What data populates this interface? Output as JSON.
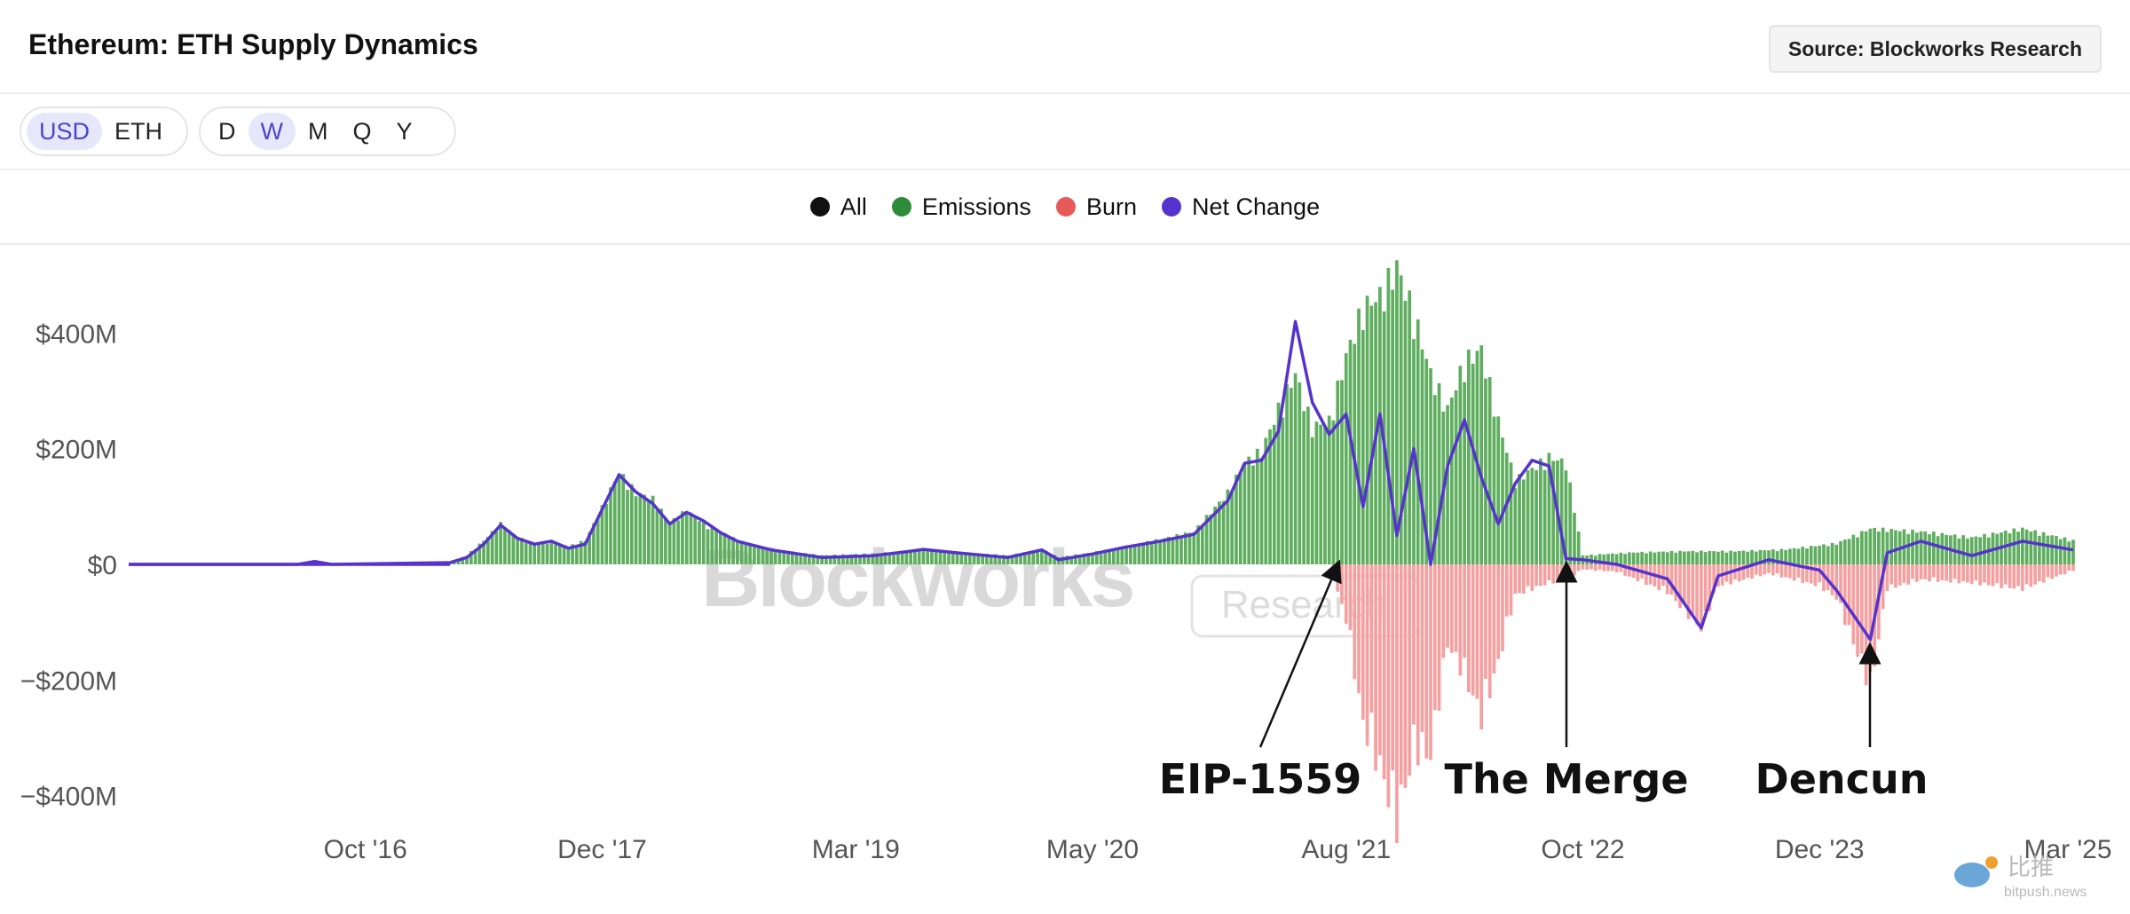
{
  "header": {
    "title": "Ethereum: ETH Supply Dynamics",
    "source_label": "Source: Blockworks Research"
  },
  "controls": {
    "currency": [
      {
        "label": "USD",
        "active": true
      },
      {
        "label": "ETH",
        "active": false
      }
    ],
    "interval": [
      {
        "label": "D",
        "active": false
      },
      {
        "label": "W",
        "active": true
      },
      {
        "label": "M",
        "active": false
      },
      {
        "label": "Q",
        "active": false
      },
      {
        "label": "Y",
        "active": false
      }
    ]
  },
  "legend": [
    {
      "label": "All",
      "color": "#111111"
    },
    {
      "label": "Emissions",
      "color": "#2e8b3a"
    },
    {
      "label": "Burn",
      "color": "#e85a5a"
    },
    {
      "label": "Net Change",
      "color": "#5533cc"
    }
  ],
  "watermark": {
    "brand": "Blockworks",
    "tag": "Research"
  },
  "corner_mark": {
    "name": "比推",
    "site": "bitpush.news"
  },
  "colors": {
    "emissions": "#5fae5f",
    "burn": "#f4a0a0",
    "net": "#5533cc",
    "annotation": "#111111"
  },
  "chart_data": {
    "type": "bar",
    "x_range": [
      "2015-08",
      "2025-03"
    ],
    "x_ticks": [
      "Oct '16",
      "Dec '17",
      "Mar '19",
      "May '20",
      "Aug '21",
      "Oct '22",
      "Dec '23",
      "Mar '25"
    ],
    "x_tick_dates": [
      "2016-10",
      "2017-12",
      "2019-03",
      "2020-05",
      "2021-08",
      "2022-10",
      "2023-12",
      "2025-03"
    ],
    "y_ticks": [
      400,
      200,
      0,
      -200,
      -400
    ],
    "y_tick_labels": [
      "$400M",
      "$200M",
      "$0",
      "−$200M",
      "−$400M"
    ],
    "ylim": [
      -430,
      510
    ],
    "y_unit": "USD millions",
    "series": [
      {
        "name": "Emissions",
        "points": [
          [
            "2015-08",
            0
          ],
          [
            "2016-06",
            1
          ],
          [
            "2017-03",
            3
          ],
          [
            "2017-04",
            15
          ],
          [
            "2017-05",
            40
          ],
          [
            "2017-06",
            68
          ],
          [
            "2017-07",
            45
          ],
          [
            "2017-08",
            35
          ],
          [
            "2017-09",
            38
          ],
          [
            "2017-10",
            30
          ],
          [
            "2017-11",
            40
          ],
          [
            "2017-12",
            95
          ],
          [
            "2018-01",
            155
          ],
          [
            "2018-02",
            120
          ],
          [
            "2018-03",
            110
          ],
          [
            "2018-04",
            70
          ],
          [
            "2018-05",
            90
          ],
          [
            "2018-06",
            70
          ],
          [
            "2018-07",
            55
          ],
          [
            "2018-08",
            40
          ],
          [
            "2018-10",
            25
          ],
          [
            "2019-01",
            15
          ],
          [
            "2019-04",
            18
          ],
          [
            "2019-06",
            22
          ],
          [
            "2019-07",
            25
          ],
          [
            "2019-09",
            20
          ],
          [
            "2019-12",
            15
          ],
          [
            "2020-02",
            25
          ],
          [
            "2020-03",
            12
          ],
          [
            "2020-05",
            20
          ],
          [
            "2020-07",
            30
          ],
          [
            "2020-09",
            42
          ],
          [
            "2020-11",
            55
          ],
          [
            "2021-01",
            120
          ],
          [
            "2021-02",
            170
          ],
          [
            "2021-03",
            190
          ],
          [
            "2021-04",
            260
          ],
          [
            "2021-05",
            320
          ],
          [
            "2021-06",
            230
          ],
          [
            "2021-07",
            240
          ],
          [
            "2021-08",
            350
          ],
          [
            "2021-09",
            430
          ],
          [
            "2021-10",
            450
          ],
          [
            "2021-11",
            500
          ],
          [
            "2021-12",
            420
          ],
          [
            "2022-01",
            320
          ],
          [
            "2022-02",
            260
          ],
          [
            "2022-03",
            340
          ],
          [
            "2022-04",
            360
          ],
          [
            "2022-05",
            240
          ],
          [
            "2022-06",
            140
          ],
          [
            "2022-07",
            160
          ],
          [
            "2022-08",
            180
          ],
          [
            "2022-09",
            170
          ],
          [
            "2022-10",
            15
          ],
          [
            "2023-01",
            20
          ],
          [
            "2023-04",
            22
          ],
          [
            "2023-07",
            22
          ],
          [
            "2023-10",
            25
          ],
          [
            "2024-01",
            35
          ],
          [
            "2024-03",
            60
          ],
          [
            "2024-06",
            55
          ],
          [
            "2024-09",
            45
          ],
          [
            "2024-12",
            60
          ],
          [
            "2025-03",
            40
          ]
        ]
      },
      {
        "name": "Burn",
        "points": [
          [
            "2015-08",
            0
          ],
          [
            "2021-07",
            0
          ],
          [
            "2021-08",
            -90
          ],
          [
            "2021-09",
            -260
          ],
          [
            "2021-10",
            -330
          ],
          [
            "2021-11",
            -420
          ],
          [
            "2021-12",
            -300
          ],
          [
            "2022-01",
            -310
          ],
          [
            "2022-02",
            -130
          ],
          [
            "2022-03",
            -180
          ],
          [
            "2022-04",
            -250
          ],
          [
            "2022-05",
            -160
          ],
          [
            "2022-06",
            -50
          ],
          [
            "2022-07",
            -40
          ],
          [
            "2022-08",
            -30
          ],
          [
            "2022-09",
            -25
          ],
          [
            "2022-10",
            -8
          ],
          [
            "2022-12",
            -12
          ],
          [
            "2023-03",
            -45
          ],
          [
            "2023-05",
            -105
          ],
          [
            "2023-06",
            -35
          ],
          [
            "2023-09",
            -15
          ],
          [
            "2023-12",
            -35
          ],
          [
            "2024-01",
            -55
          ],
          [
            "2024-03",
            -200
          ],
          [
            "2024-04",
            -40
          ],
          [
            "2024-06",
            -25
          ],
          [
            "2024-09",
            -30
          ],
          [
            "2024-12",
            -40
          ],
          [
            "2025-03",
            -10
          ]
        ]
      },
      {
        "name": "Net Change",
        "points": [
          [
            "2015-08",
            0
          ],
          [
            "2016-06",
            0
          ],
          [
            "2016-07",
            5
          ],
          [
            "2016-08",
            0
          ],
          [
            "2017-03",
            3
          ],
          [
            "2017-04",
            12
          ],
          [
            "2017-05",
            35
          ],
          [
            "2017-06",
            68
          ],
          [
            "2017-07",
            45
          ],
          [
            "2017-08",
            35
          ],
          [
            "2017-09",
            40
          ],
          [
            "2017-10",
            28
          ],
          [
            "2017-11",
            35
          ],
          [
            "2017-12",
            95
          ],
          [
            "2018-01",
            155
          ],
          [
            "2018-02",
            125
          ],
          [
            "2018-03",
            105
          ],
          [
            "2018-04",
            70
          ],
          [
            "2018-05",
            90
          ],
          [
            "2018-06",
            75
          ],
          [
            "2018-07",
            55
          ],
          [
            "2018-08",
            40
          ],
          [
            "2018-10",
            25
          ],
          [
            "2019-01",
            12
          ],
          [
            "2019-04",
            15
          ],
          [
            "2019-06",
            22
          ],
          [
            "2019-07",
            26
          ],
          [
            "2019-09",
            20
          ],
          [
            "2019-12",
            12
          ],
          [
            "2020-02",
            25
          ],
          [
            "2020-03",
            8
          ],
          [
            "2020-05",
            18
          ],
          [
            "2020-07",
            30
          ],
          [
            "2020-09",
            40
          ],
          [
            "2020-11",
            52
          ],
          [
            "2021-01",
            110
          ],
          [
            "2021-02",
            175
          ],
          [
            "2021-03",
            180
          ],
          [
            "2021-04",
            230
          ],
          [
            "2021-05",
            420
          ],
          [
            "2021-06",
            280
          ],
          [
            "2021-07",
            225
          ],
          [
            "2021-08",
            260
          ],
          [
            "2021-09",
            100
          ],
          [
            "2021-10",
            260
          ],
          [
            "2021-11",
            50
          ],
          [
            "2021-12",
            200
          ],
          [
            "2022-01",
            0
          ],
          [
            "2022-02",
            170
          ],
          [
            "2022-03",
            250
          ],
          [
            "2022-04",
            150
          ],
          [
            "2022-05",
            70
          ],
          [
            "2022-06",
            140
          ],
          [
            "2022-07",
            180
          ],
          [
            "2022-08",
            170
          ],
          [
            "2022-09",
            10
          ],
          [
            "2022-10",
            8
          ],
          [
            "2022-12",
            0
          ],
          [
            "2023-03",
            -25
          ],
          [
            "2023-05",
            -110
          ],
          [
            "2023-06",
            -20
          ],
          [
            "2023-09",
            8
          ],
          [
            "2023-12",
            -10
          ],
          [
            "2024-01",
            -45
          ],
          [
            "2024-03",
            -130
          ],
          [
            "2024-04",
            20
          ],
          [
            "2024-06",
            40
          ],
          [
            "2024-09",
            15
          ],
          [
            "2024-12",
            40
          ],
          [
            "2025-03",
            25
          ]
        ]
      }
    ],
    "annotations": [
      {
        "label": "EIP-1559",
        "date": "2021-08"
      },
      {
        "label": "The Merge",
        "date": "2022-09"
      },
      {
        "label": "Dencun",
        "date": "2024-03"
      }
    ],
    "legend_position": "top-center",
    "grid": false
  }
}
